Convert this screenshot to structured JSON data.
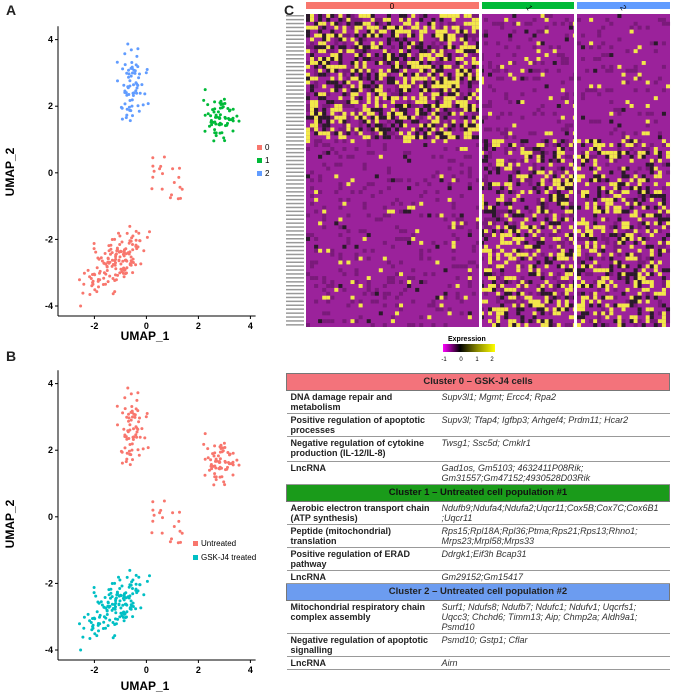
{
  "panels": {
    "a": "A",
    "b": "B",
    "c": "C"
  },
  "umap": {
    "xlabel": "UMAP_1",
    "ylabel": "UMAP_2",
    "xticks": [
      "-2",
      "0",
      "2",
      "4"
    ],
    "yticks": [
      "4",
      "2",
      "0",
      "-2",
      "-4"
    ]
  },
  "legendA": [
    {
      "label": "0",
      "color": "#f8766d"
    },
    {
      "label": "1",
      "color": "#00ba38"
    },
    {
      "label": "2",
      "color": "#619cff"
    }
  ],
  "legendB": [
    {
      "label": "Untreated",
      "color": "#f8766d"
    },
    {
      "label": "GSK-J4 treated",
      "color": "#00bfc4"
    }
  ],
  "heatmap": {
    "clusters": [
      "0",
      "1",
      "2"
    ],
    "cluster_colors": [
      "#f8766d",
      "#00ba38",
      "#619cff"
    ],
    "legend_title": "Expression",
    "legend_ticks": [
      "-1",
      "0",
      "1",
      "2"
    ]
  },
  "table": {
    "clusters": [
      {
        "header": "Cluster 0 – GSK-J4 cells",
        "rows": [
          {
            "label": "DNA damage repair and metabolism",
            "genes": "Supv3l1; Mgmt; Ercc4; Rpa2"
          },
          {
            "label": "Positive regulation of apoptotic processes",
            "genes": "Supv3l; Tfap4; Igfbp3; Arhgef4; Prdm11; Hcar2"
          },
          {
            "label": "Negative regulation of cytokine production (IL-12/IL-8)",
            "genes": "Twsg1; Ssc5d; Cmklr1"
          },
          {
            "label": "LncRNA",
            "genes": "Gad1os, Gm5103; 4632411P08Rik; Gm31557;Gm47152;4930528D03Rik"
          }
        ]
      },
      {
        "header": "Cluster 1 – Untreated cell population #1",
        "rows": [
          {
            "label": "Aerobic electron transport chain (ATP synthesis)",
            "genes": "Ndufb9;Ndufa4;Ndufa2;Uqcr11;Cox5B;Cox7C;Cox6B1 ;Uqcr11"
          },
          {
            "label": "Peptide (mitochondrial) translation",
            "genes": "Rps15;Rpl18A;Rpl36;Ptma;Rps21;Rps13;Rhno1; Mrps23;Mrpl58;Mrps33"
          },
          {
            "label": "Positive regulation of ERAD pathway",
            "genes": "Ddrgk1;Eif3h Bcap31"
          },
          {
            "label": "LncRNA",
            "genes": "Gm29152;Gm15417"
          }
        ]
      },
      {
        "header": "Cluster 2 – Untreated cell population #2",
        "rows": [
          {
            "label": "Mitochondrial respiratory chain complex assembly",
            "genes": "Surf1; Ndufs8; Ndufb7; Ndufc1; Ndufv1; Uqcrfs1; Uqcc3; Chchd6; Timm13; Aip; Chmp2a; Aldh9a1; Psmd10"
          },
          {
            "label": "Negative regulation of apoptotic signalling",
            "genes": "Psmd10; Gstp1; Cflar"
          },
          {
            "label": "LncRNA",
            "genes": "Airn"
          }
        ]
      }
    ]
  }
}
